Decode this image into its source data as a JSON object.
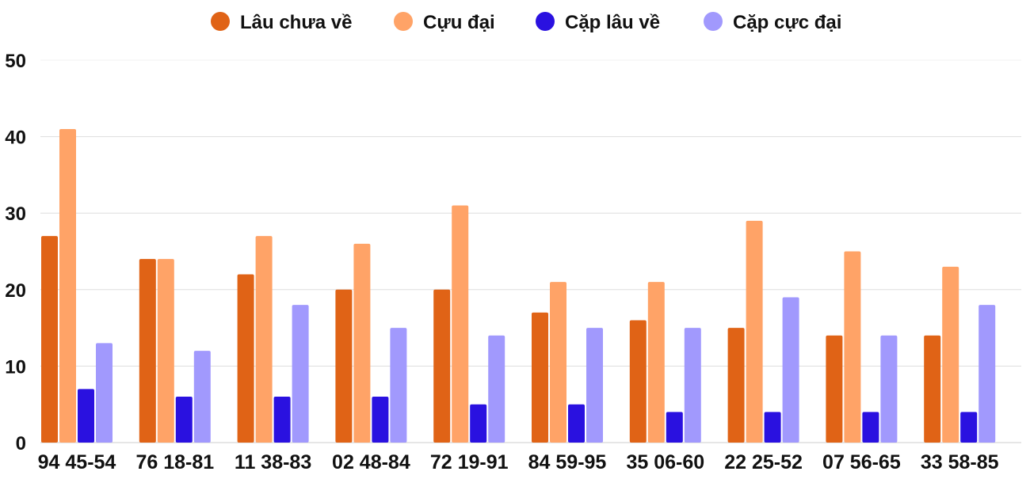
{
  "chart_data": {
    "type": "bar",
    "title": "",
    "xlabel": "",
    "ylabel": "",
    "ylim": [
      0,
      50
    ],
    "yticks": [
      0,
      10,
      20,
      30,
      40,
      50
    ],
    "grid": true,
    "legend_position": "top",
    "categories": [
      "94 45-54",
      "76 18-81",
      "11 38-83",
      "02 48-84",
      "72 19-91",
      "84 59-95",
      "35 06-60",
      "22 25-52",
      "07 56-65",
      "33 58-85"
    ],
    "series": [
      {
        "name": "Lâu chưa về",
        "color": "#e06316",
        "values": [
          27,
          24,
          22,
          20,
          20,
          17,
          16,
          15,
          14,
          14
        ]
      },
      {
        "name": "Cựu đại",
        "color": "#ffa367",
        "values": [
          41,
          24,
          27,
          26,
          31,
          21,
          21,
          29,
          25,
          23
        ]
      },
      {
        "name": "Cặp lâu về",
        "color": "#2a11e0",
        "values": [
          7,
          6,
          6,
          6,
          5,
          5,
          4,
          4,
          4,
          4
        ]
      },
      {
        "name": "Cặp cực đại",
        "color": "#a199fd",
        "values": [
          13,
          12,
          18,
          15,
          14,
          15,
          15,
          19,
          14,
          18
        ]
      }
    ]
  }
}
